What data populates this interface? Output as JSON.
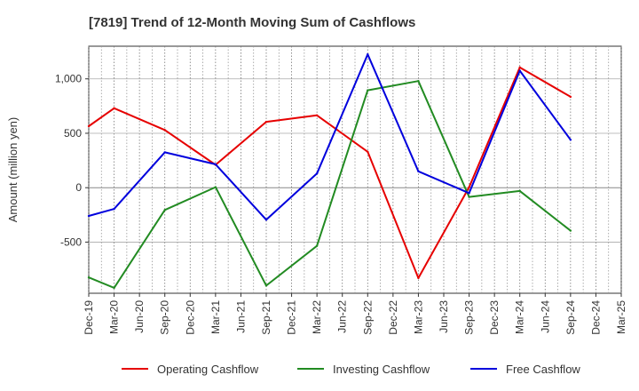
{
  "chart_data": {
    "type": "line",
    "title": "[7819]  Trend of 12-Month Moving Sum of Cashflows",
    "ylabel": "Amount (million yen)",
    "xlabel": "",
    "categories": [
      "Dec-19",
      "Mar-20",
      "Jun-20",
      "Sep-20",
      "Dec-20",
      "Mar-21",
      "Jun-21",
      "Sep-21",
      "Dec-21",
      "Mar-22",
      "Jun-22",
      "Sep-22",
      "Dec-22",
      "Mar-23",
      "Jun-23",
      "Sep-23",
      "Dec-23",
      "Mar-24",
      "Jun-24",
      "Sep-24",
      "Dec-24",
      "Mar-25"
    ],
    "ylim": [
      -970,
      1300
    ],
    "yticks": [
      -500,
      0,
      500,
      1000
    ],
    "ytick_labels": [
      "-500",
      "0",
      "500",
      "1,000"
    ],
    "grid": true,
    "legend_position": "bottom",
    "series": [
      {
        "name": "Operating Cashflow",
        "color": "#e60000",
        "values": [
          565,
          730,
          null,
          530,
          null,
          210,
          null,
          605,
          null,
          665,
          null,
          330,
          null,
          -830,
          null,
          5,
          null,
          1105,
          null,
          835,
          null,
          null
        ]
      },
      {
        "name": "Investing Cashflow",
        "color": "#228b22",
        "values": [
          -825,
          -920,
          null,
          -205,
          null,
          5,
          null,
          -900,
          null,
          -535,
          null,
          895,
          null,
          980,
          null,
          -85,
          null,
          -30,
          null,
          -395,
          null,
          null
        ]
      },
      {
        "name": "Free Cashflow",
        "color": "#0000dd",
        "values": [
          -260,
          -195,
          null,
          325,
          null,
          215,
          null,
          -295,
          null,
          130,
          null,
          1225,
          null,
          150,
          null,
          -50,
          null,
          1075,
          null,
          440,
          null,
          null
        ]
      }
    ]
  }
}
